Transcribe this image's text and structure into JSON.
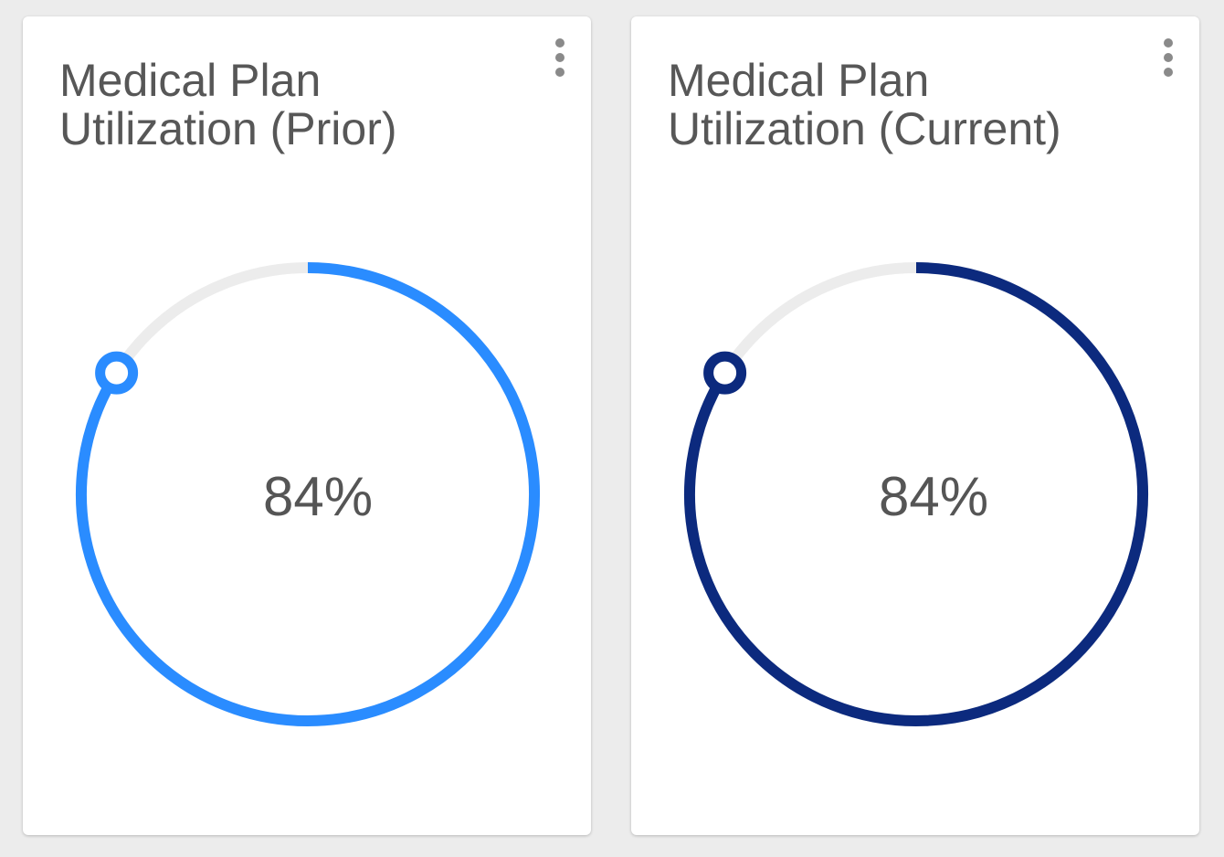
{
  "cards": [
    {
      "id": "prior",
      "title": "Medical Plan Utilization (Prior)",
      "value_label": "84%",
      "utilization": 0.84,
      "color": "#2a8cff",
      "track_color": "#ececec",
      "menu_icon": "kebab-vertical-icon"
    },
    {
      "id": "current",
      "title": "Medical Plan Utilization (Current)",
      "value_label": "84%",
      "utilization": 0.84,
      "color": "#0c2a7e",
      "track_color": "#ececec",
      "menu_icon": "kebab-vertical-icon"
    }
  ]
}
